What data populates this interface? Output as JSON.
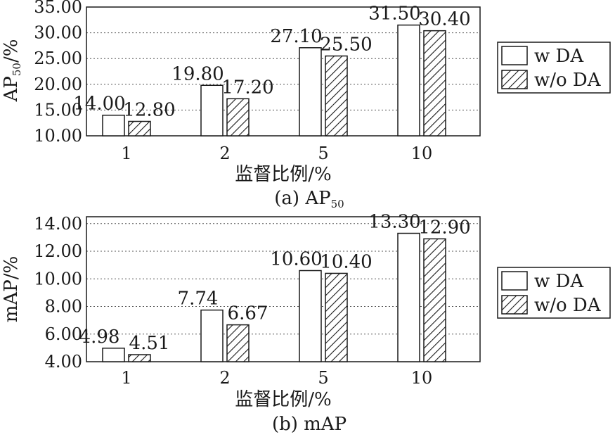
{
  "legend": {
    "w_da": "w DA",
    "wo_da": "w/o DA"
  },
  "chart_data": [
    {
      "type": "bar",
      "caption": "(a) AP",
      "caption_sub": "50",
      "ylabel": "AP",
      "ylabel_sub": "50",
      "ylabel_suffix": "/%",
      "xlabel": "监督比例/%",
      "categories": [
        "1",
        "2",
        "5",
        "10"
      ],
      "ylim": [
        10,
        35
      ],
      "yticks": [
        "10.00",
        "15.00",
        "20.00",
        "25.00",
        "30.00",
        "35.00"
      ],
      "series": [
        {
          "name": "w DA",
          "values": [
            14.0,
            19.8,
            27.1,
            31.5
          ],
          "labels": [
            "14.00",
            "19.80",
            "27.10",
            "31.50"
          ]
        },
        {
          "name": "w/o DA",
          "values": [
            12.8,
            17.2,
            25.5,
            30.4
          ],
          "labels": [
            "12.80",
            "17.20",
            "25.50",
            "30.40"
          ]
        }
      ],
      "grid": true,
      "legend_position": "right"
    },
    {
      "type": "bar",
      "caption": "(b) mAP",
      "ylabel": "mAP/%",
      "xlabel": "监督比例/%",
      "categories": [
        "1",
        "2",
        "5",
        "10"
      ],
      "ylim": [
        4,
        14.5
      ],
      "yticks": [
        "4.00",
        "6.00",
        "8.00",
        "10.00",
        "12.00",
        "14.00"
      ],
      "series": [
        {
          "name": "w DA",
          "values": [
            4.98,
            7.74,
            10.6,
            13.3
          ],
          "labels": [
            "4.98",
            "7.74",
            "10.60",
            "13.30"
          ]
        },
        {
          "name": "w/o DA",
          "values": [
            4.51,
            6.67,
            10.4,
            12.9
          ],
          "labels": [
            "4.51",
            "6.67",
            "10.40",
            "12.90"
          ]
        }
      ],
      "grid": true,
      "legend_position": "right"
    }
  ]
}
